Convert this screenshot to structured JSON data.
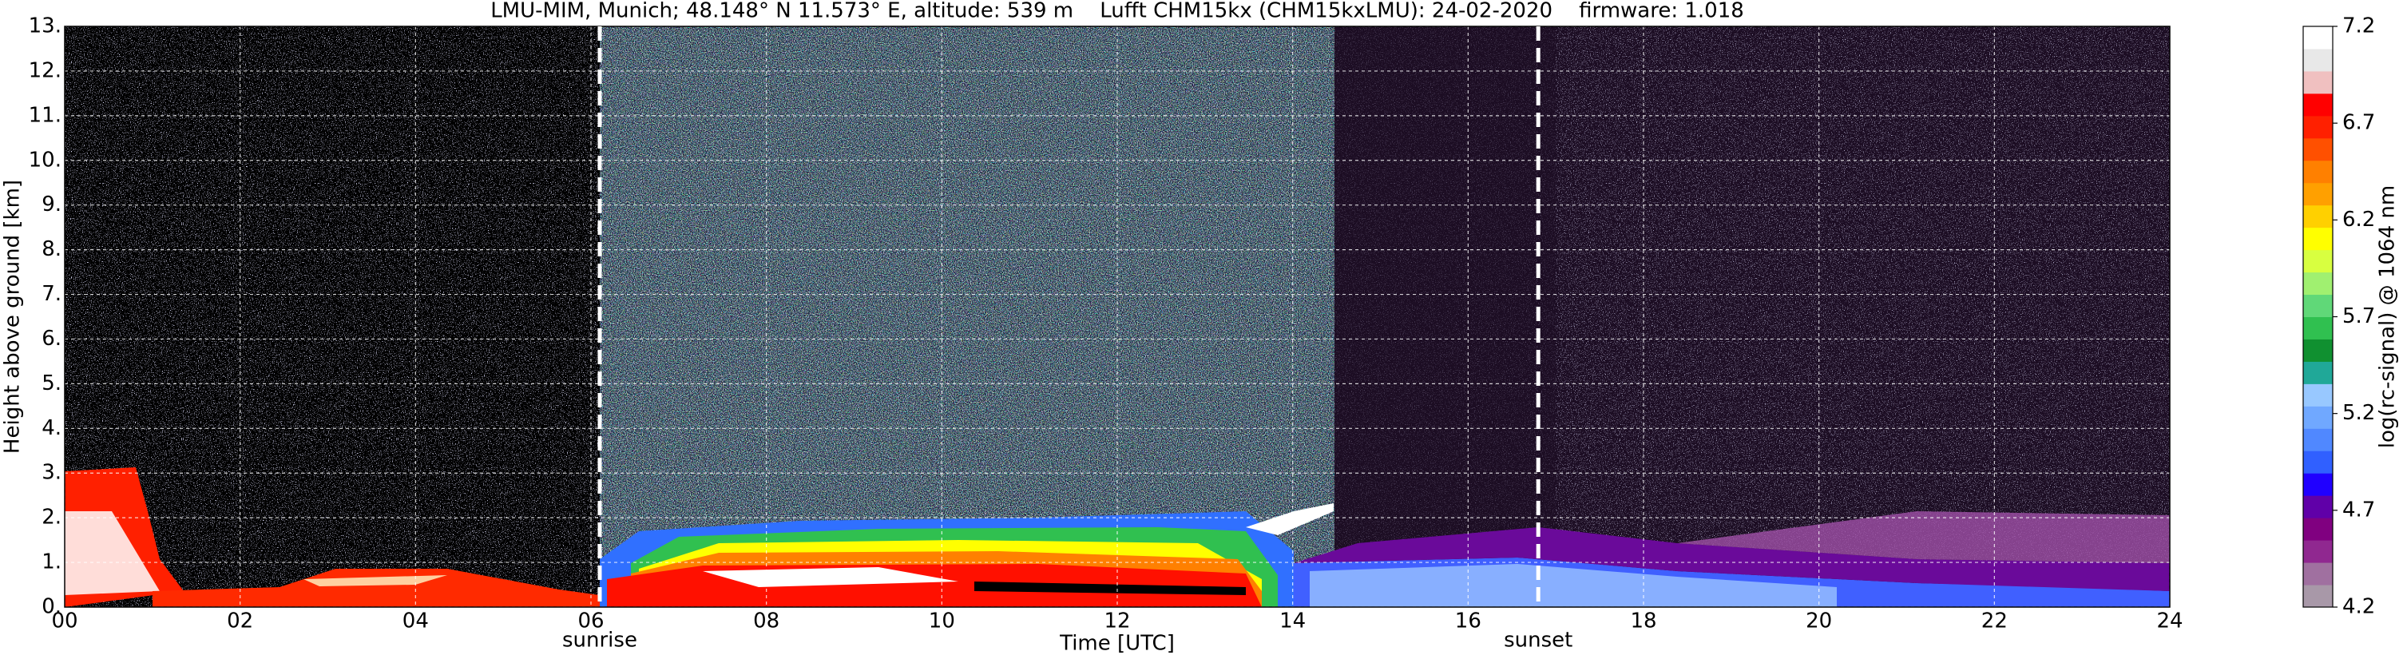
{
  "chart_data": {
    "type": "heatmap",
    "title": "LMU-MIM, Munich; 48.148° N 11.573° E, altitude: 539 m    Lufft CHM15kx (CHM15kxLMU): 24-02-2020    firmware: 1.018",
    "xlabel": "Time [UTC]",
    "ylabel": "Height above ground [km]",
    "colorbar_label": "log(rc-signal) @ 1064 nm",
    "xlim": [
      0,
      24
    ],
    "xticks": [
      {
        "value": 0,
        "label": "00"
      },
      {
        "value": 2,
        "label": "02"
      },
      {
        "value": 4,
        "label": "04"
      },
      {
        "value": 6,
        "label": "06"
      },
      {
        "value": 8,
        "label": "08"
      },
      10,
      12,
      14,
      16,
      18,
      20,
      22,
      24
    ],
    "ylim": [
      0,
      13
    ],
    "yticks": [
      {
        "value": 0,
        "label": "0."
      },
      {
        "value": 1,
        "label": "1."
      },
      {
        "value": 2,
        "label": "2."
      },
      {
        "value": 3,
        "label": "3."
      },
      {
        "value": 4,
        "label": "4."
      },
      {
        "value": 5,
        "label": "5."
      },
      {
        "value": 6,
        "label": "6."
      },
      {
        "value": 7,
        "label": "7."
      },
      {
        "value": 8,
        "label": "8."
      },
      {
        "value": 9,
        "label": "9."
      },
      {
        "value": 10,
        "label": "10."
      },
      {
        "value": 11,
        "label": "11."
      },
      {
        "value": 12,
        "label": "12."
      },
      {
        "value": 13,
        "label": "13."
      }
    ],
    "clim": [
      4.2,
      7.2
    ],
    "cticks": [
      4.2,
      4.7,
      5.2,
      5.7,
      6.2,
      6.7,
      7.2
    ],
    "colormap": [
      "#a898a8",
      "#a070a0",
      "#902890",
      "#800080",
      "#6000a8",
      "#2000ff",
      "#3060ff",
      "#5088ff",
      "#70a8ff",
      "#98c8ff",
      "#20a898",
      "#109030",
      "#30c050",
      "#60d878",
      "#a0f070",
      "#d8ff40",
      "#ffff00",
      "#ffd000",
      "#ffa000",
      "#ff8000",
      "#ff5000",
      "#ff2000",
      "#ff0000",
      "#f0c0c0",
      "#e8e8e8",
      "#ffffff"
    ],
    "grid": true,
    "annotations": [
      {
        "x": 6.1,
        "label": "sunrise"
      },
      {
        "x": 16.8,
        "label": "sunset"
      }
    ]
  }
}
